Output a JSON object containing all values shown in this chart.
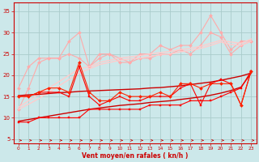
{
  "background_color": "#cce8ea",
  "grid_color": "#aacccc",
  "xlabel": "Vent moyen/en rafales ( kn/h )",
  "xlabel_color": "#cc0000",
  "tick_color": "#cc0000",
  "arrow_color": "#cc0000",
  "x_ticks": [
    0,
    1,
    2,
    3,
    4,
    5,
    6,
    7,
    8,
    9,
    10,
    11,
    12,
    13,
    14,
    15,
    16,
    17,
    18,
    19,
    20,
    21,
    22,
    23
  ],
  "ylim": [
    4,
    37
  ],
  "xlim": [
    -0.5,
    23.5
  ],
  "yticks": [
    5,
    10,
    15,
    20,
    25,
    30,
    35
  ],
  "lines": [
    {
      "color": "#ffaaaa",
      "lw": 0.8,
      "marker": "D",
      "ms": 2.0,
      "y": [
        12,
        17,
        23,
        24,
        24,
        28,
        30,
        22,
        25,
        25,
        24,
        23,
        25,
        25,
        27,
        26,
        27,
        27,
        30,
        34,
        30,
        26,
        28,
        28
      ]
    },
    {
      "color": "#ffaaaa",
      "lw": 0.8,
      "marker": "D",
      "ms": 2.0,
      "y": [
        17,
        22,
        24,
        24,
        24,
        25,
        24,
        22,
        24,
        25,
        23,
        23,
        24,
        24,
        25,
        25,
        26,
        25,
        27,
        30,
        29,
        25,
        27,
        28
      ]
    },
    {
      "color": "#ffcccc",
      "lw": 1.0,
      "marker": null,
      "ms": 0,
      "y": [
        12.5,
        14.0,
        15.5,
        17.0,
        18.5,
        20.0,
        21.5,
        22.0,
        23.0,
        23.5,
        24.0,
        24.3,
        24.6,
        25.0,
        25.3,
        25.6,
        26.0,
        26.3,
        26.8,
        27.5,
        28.2,
        27.8,
        27.5,
        28.5
      ]
    },
    {
      "color": "#ffcccc",
      "lw": 1.0,
      "marker": null,
      "ms": 0,
      "y": [
        12.0,
        13.2,
        14.5,
        16.0,
        17.5,
        19.0,
        20.5,
        21.5,
        22.5,
        23.0,
        23.5,
        23.8,
        24.0,
        24.4,
        24.8,
        25.0,
        25.5,
        25.8,
        26.3,
        27.0,
        27.8,
        27.2,
        27.0,
        28.0
      ]
    },
    {
      "color": "#cc0000",
      "lw": 1.0,
      "marker": null,
      "ms": 0,
      "y": [
        9.2,
        9.6,
        10.0,
        10.4,
        10.8,
        11.2,
        11.6,
        12.0,
        12.3,
        12.6,
        12.9,
        13.1,
        13.3,
        13.6,
        13.8,
        14.0,
        14.3,
        14.6,
        14.9,
        15.3,
        15.8,
        16.4,
        17.2,
        20.5
      ]
    },
    {
      "color": "#cc0000",
      "lw": 1.0,
      "marker": null,
      "ms": 0,
      "y": [
        15.2,
        15.4,
        15.5,
        15.7,
        15.9,
        16.0,
        16.2,
        16.3,
        16.4,
        16.5,
        16.6,
        16.7,
        16.8,
        17.0,
        17.1,
        17.3,
        17.5,
        17.8,
        18.1,
        18.4,
        18.8,
        19.3,
        19.8,
        20.5
      ]
    },
    {
      "color": "#ff0000",
      "lw": 0.8,
      "marker": "s",
      "ms": 2.0,
      "y": [
        9,
        9,
        10,
        10,
        10,
        10,
        10,
        12,
        12,
        12,
        12,
        12,
        12,
        13,
        13,
        13,
        13,
        14,
        14,
        14,
        15,
        16,
        17,
        21
      ]
    },
    {
      "color": "#ff0000",
      "lw": 0.8,
      "marker": "s",
      "ms": 2.0,
      "y": [
        15,
        15,
        16,
        16,
        16,
        15,
        22,
        15,
        13,
        14,
        15,
        14,
        14,
        15,
        15,
        15,
        17,
        18,
        13,
        18,
        19,
        18,
        13,
        21
      ]
    },
    {
      "color": "#ff2200",
      "lw": 0.8,
      "marker": "D",
      "ms": 2.0,
      "y": [
        15,
        15,
        16,
        17,
        17,
        16,
        23,
        16,
        14,
        14,
        16,
        15,
        15,
        15,
        16,
        15,
        18,
        18,
        17,
        18,
        18,
        18,
        13,
        21
      ]
    }
  ]
}
